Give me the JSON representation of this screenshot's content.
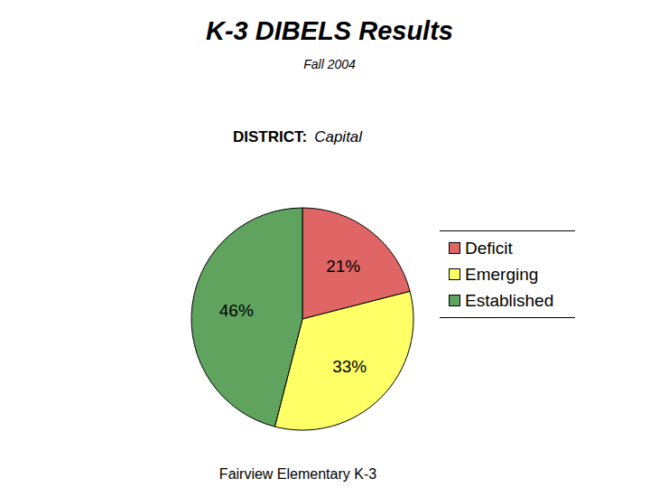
{
  "chart_data": {
    "type": "pie",
    "title": "K-3 DIBELS Results",
    "subtitle": "Fall 2004",
    "district_label": "DISTRICT:",
    "district": "Capital",
    "caption": "Fairview Elementary K-3",
    "categories": [
      "Deficit",
      "Emerging",
      "Established"
    ],
    "values": [
      21,
      33,
      46
    ],
    "value_labels": [
      "21%",
      "33%",
      "46%"
    ],
    "colors": [
      "#e06666",
      "#ffff66",
      "#5fa35f"
    ],
    "data_labels": true,
    "legend": "right"
  }
}
